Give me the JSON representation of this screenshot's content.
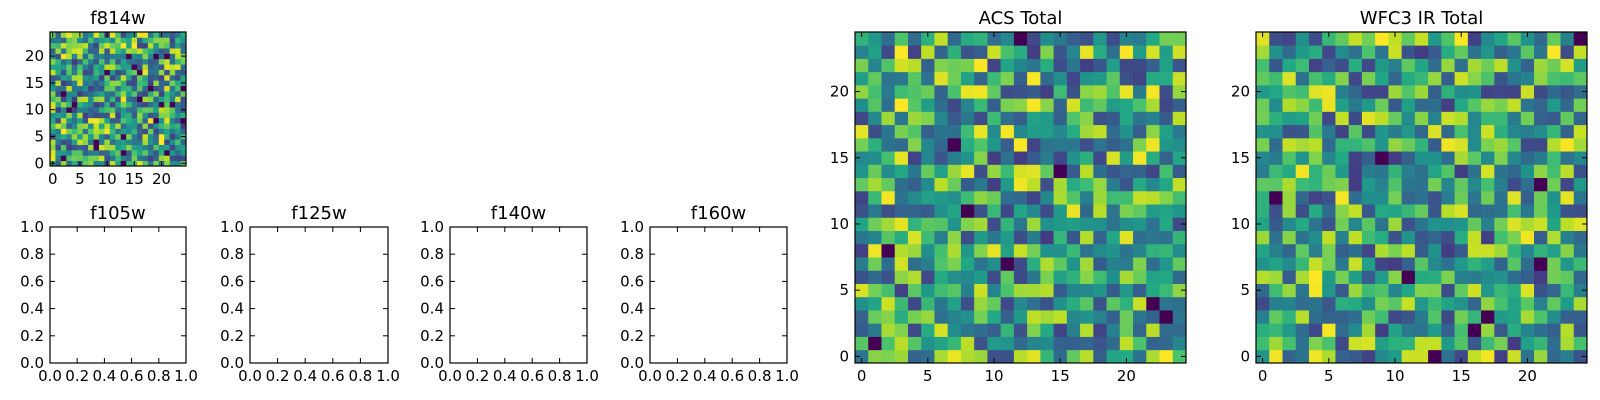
{
  "chart_data": [
    {
      "id": "f814w",
      "type": "heatmap",
      "title": "f814w",
      "colormap": "viridis",
      "grid_size": [
        25,
        25
      ],
      "xlim": [
        -0.5,
        24.5
      ],
      "ylim": [
        -0.5,
        24.5
      ],
      "xticks": [
        0,
        5,
        10,
        15,
        20
      ],
      "xtick_labels": [
        "0",
        "5",
        "10",
        "15",
        "20"
      ],
      "yticks": [
        0,
        5,
        10,
        15,
        20
      ],
      "ytick_labels": [
        "0",
        "5",
        "10",
        "15",
        "20"
      ],
      "seed": 814
    },
    {
      "id": "f105w",
      "type": "scatter",
      "title": "f105w",
      "empty": true,
      "xlim": [
        0,
        1
      ],
      "ylim": [
        0,
        1
      ],
      "xticks": [
        0,
        0.2,
        0.4,
        0.6,
        0.8,
        1.0
      ],
      "xtick_labels": [
        "0.0",
        "0.2",
        "0.4",
        "0.6",
        "0.8",
        "1.0"
      ],
      "yticks": [
        0,
        0.2,
        0.4,
        0.6,
        0.8,
        1.0
      ],
      "ytick_labels": [
        "0.0",
        "0.2",
        "0.4",
        "0.6",
        "0.8",
        "1.0"
      ]
    },
    {
      "id": "f125w",
      "type": "scatter",
      "title": "f125w",
      "empty": true,
      "xlim": [
        0,
        1
      ],
      "ylim": [
        0,
        1
      ],
      "xticks": [
        0,
        0.2,
        0.4,
        0.6,
        0.8,
        1.0
      ],
      "xtick_labels": [
        "0.0",
        "0.2",
        "0.4",
        "0.6",
        "0.8",
        "1.0"
      ],
      "yticks": [
        0,
        0.2,
        0.4,
        0.6,
        0.8,
        1.0
      ],
      "ytick_labels": [
        "0.0",
        "0.2",
        "0.4",
        "0.6",
        "0.8",
        "1.0"
      ]
    },
    {
      "id": "f140w",
      "type": "scatter",
      "title": "f140w",
      "empty": true,
      "xlim": [
        0,
        1
      ],
      "ylim": [
        0,
        1
      ],
      "xticks": [
        0,
        0.2,
        0.4,
        0.6,
        0.8,
        1.0
      ],
      "xtick_labels": [
        "0.0",
        "0.2",
        "0.4",
        "0.6",
        "0.8",
        "1.0"
      ],
      "yticks": [
        0,
        0.2,
        0.4,
        0.6,
        0.8,
        1.0
      ],
      "ytick_labels": [
        "0.0",
        "0.2",
        "0.4",
        "0.6",
        "0.8",
        "1.0"
      ]
    },
    {
      "id": "f160w",
      "type": "scatter",
      "title": "f160w",
      "empty": true,
      "xlim": [
        0,
        1
      ],
      "ylim": [
        0,
        1
      ],
      "xticks": [
        0,
        0.2,
        0.4,
        0.6,
        0.8,
        1.0
      ],
      "xtick_labels": [
        "0.0",
        "0.2",
        "0.4",
        "0.6",
        "0.8",
        "1.0"
      ],
      "yticks": [
        0,
        0.2,
        0.4,
        0.6,
        0.8,
        1.0
      ],
      "ytick_labels": [
        "0.0",
        "0.2",
        "0.4",
        "0.6",
        "0.8",
        "1.0"
      ]
    },
    {
      "id": "acs-total",
      "type": "heatmap",
      "title": "ACS Total",
      "colormap": "viridis",
      "grid_size": [
        25,
        25
      ],
      "xlim": [
        -0.5,
        24.5
      ],
      "ylim": [
        -0.5,
        24.5
      ],
      "xticks": [
        0,
        5,
        10,
        15,
        20
      ],
      "xtick_labels": [
        "0",
        "5",
        "10",
        "15",
        "20"
      ],
      "yticks": [
        0,
        5,
        10,
        15,
        20
      ],
      "ytick_labels": [
        "0",
        "5",
        "10",
        "15",
        "20"
      ],
      "seed": 2718
    },
    {
      "id": "wfc3-ir-total",
      "type": "heatmap",
      "title": "WFC3 IR Total",
      "colormap": "viridis",
      "grid_size": [
        25,
        25
      ],
      "xlim": [
        -0.5,
        24.5
      ],
      "ylim": [
        -0.5,
        24.5
      ],
      "xticks": [
        0,
        5,
        10,
        15,
        20
      ],
      "xtick_labels": [
        "0",
        "5",
        "10",
        "15",
        "20"
      ],
      "yticks": [
        0,
        5,
        10,
        15,
        20
      ],
      "ytick_labels": [
        "0",
        "5",
        "10",
        "15",
        "20"
      ],
      "seed": 3141
    }
  ]
}
